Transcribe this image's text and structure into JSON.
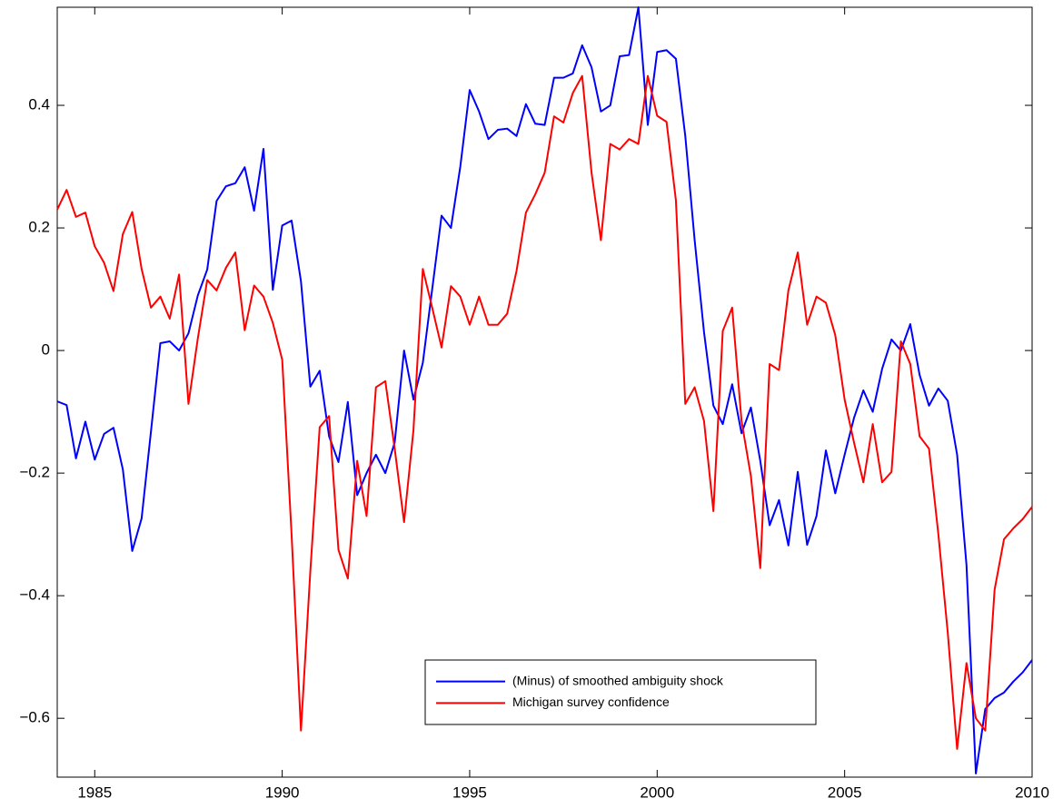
{
  "chart_data": {
    "type": "line",
    "x": [
      1984,
      1984.25,
      1984.5,
      1984.75,
      1985,
      1985.25,
      1985.5,
      1985.75,
      1986,
      1986.25,
      1986.5,
      1986.75,
      1987,
      1987.25,
      1987.5,
      1987.75,
      1988,
      1988.25,
      1988.5,
      1988.75,
      1989,
      1989.25,
      1989.5,
      1989.75,
      1990,
      1990.25,
      1990.5,
      1990.75,
      1991,
      1991.25,
      1991.5,
      1991.75,
      1992,
      1992.25,
      1992.5,
      1992.75,
      1993,
      1993.25,
      1993.5,
      1993.75,
      1994,
      1994.25,
      1994.5,
      1994.75,
      1995,
      1995.25,
      1995.5,
      1995.75,
      1996,
      1996.25,
      1996.5,
      1996.75,
      1997,
      1997.25,
      1997.5,
      1997.75,
      1998,
      1998.25,
      1998.5,
      1998.75,
      1999,
      1999.25,
      1999.5,
      1999.75,
      2000,
      2000.25,
      2000.5,
      2000.75,
      2001,
      2001.25,
      2001.5,
      2001.75,
      2002,
      2002.25,
      2002.5,
      2002.75,
      2003,
      2003.25,
      2003.5,
      2003.75,
      2004,
      2004.25,
      2004.5,
      2004.75,
      2005,
      2005.25,
      2005.5,
      2005.75,
      2006,
      2006.25,
      2006.5,
      2006.75,
      2007,
      2007.25,
      2007.5,
      2007.75,
      2008,
      2008.25,
      2008.5,
      2008.75,
      2009,
      2009.25,
      2009.5,
      2009.75,
      2010
    ],
    "series": [
      {
        "name": "(Minus) of smoothed ambiguity shock",
        "color": "#0000ff",
        "values": [
          -0.083,
          -0.089,
          -0.176,
          -0.116,
          -0.178,
          -0.136,
          -0.126,
          -0.194,
          -0.327,
          -0.274,
          -0.132,
          0.012,
          0.015,
          0.0,
          0.028,
          0.09,
          0.132,
          0.244,
          0.268,
          0.273,
          0.299,
          0.228,
          0.329,
          0.099,
          0.204,
          0.212,
          0.113,
          -0.059,
          -0.033,
          -0.14,
          -0.182,
          -0.084,
          -0.236,
          -0.2,
          -0.17,
          -0.2,
          -0.15,
          0.0,
          -0.08,
          -0.02,
          0.1,
          0.22,
          0.2,
          0.3,
          0.425,
          0.39,
          0.345,
          0.36,
          0.362,
          0.35,
          0.402,
          0.37,
          0.368,
          0.445,
          0.445,
          0.452,
          0.498,
          0.462,
          0.39,
          0.4,
          0.48,
          0.482,
          0.56,
          0.368,
          0.487,
          0.49,
          0.476,
          0.35,
          0.18,
          0.03,
          -0.09,
          -0.12,
          -0.055,
          -0.135,
          -0.093,
          -0.18,
          -0.285,
          -0.244,
          -0.318,
          -0.198,
          -0.317,
          -0.27,
          -0.163,
          -0.233,
          -0.17,
          -0.11,
          -0.065,
          -0.1,
          -0.03,
          0.018,
          0.0,
          0.043,
          -0.04,
          -0.09,
          -0.062,
          -0.082,
          -0.17,
          -0.35,
          -0.69,
          -0.585,
          -0.567,
          -0.558,
          -0.54,
          -0.525,
          -0.505
        ]
      },
      {
        "name": "Michigan survey confidence",
        "color": "#ff0000",
        "values": [
          0.23,
          0.262,
          0.218,
          0.225,
          0.17,
          0.143,
          0.097,
          0.19,
          0.226,
          0.133,
          0.07,
          0.088,
          0.052,
          0.124,
          -0.087,
          0.02,
          0.115,
          0.098,
          0.135,
          0.16,
          0.033,
          0.106,
          0.088,
          0.045,
          -0.015,
          -0.3,
          -0.62,
          -0.36,
          -0.125,
          -0.107,
          -0.325,
          -0.372,
          -0.18,
          -0.27,
          -0.06,
          -0.05,
          -0.16,
          -0.28,
          -0.13,
          0.133,
          0.07,
          0.005,
          0.105,
          0.088,
          0.042,
          0.088,
          0.042,
          0.042,
          0.06,
          0.13,
          0.225,
          0.255,
          0.29,
          0.382,
          0.372,
          0.42,
          0.448,
          0.29,
          0.18,
          0.337,
          0.328,
          0.345,
          0.337,
          0.448,
          0.383,
          0.373,
          0.245,
          -0.087,
          -0.06,
          -0.115,
          -0.262,
          0.032,
          0.07,
          -0.115,
          -0.205,
          -0.355,
          -0.022,
          -0.032,
          0.098,
          0.16,
          0.042,
          0.088,
          0.078,
          0.025,
          -0.08,
          -0.15,
          -0.215,
          -0.12,
          -0.215,
          -0.198,
          0.015,
          -0.022,
          -0.14,
          -0.16,
          -0.3,
          -0.46,
          -0.65,
          -0.51,
          -0.6,
          -0.62,
          -0.39,
          -0.308,
          -0.29,
          -0.275,
          -0.255
        ]
      }
    ],
    "xlim": [
      1984,
      2010
    ],
    "xticks": [
      1985,
      1990,
      1995,
      2000,
      2005,
      2010
    ],
    "ylim": [
      -0.696,
      0.56
    ],
    "yticks": [
      {
        "value": -0.6,
        "label": "−0.6"
      },
      {
        "value": -0.4,
        "label": "−0.4"
      },
      {
        "value": -0.2,
        "label": "−0.2"
      },
      0,
      0.2,
      0.4
    ],
    "legend_position": "south"
  }
}
